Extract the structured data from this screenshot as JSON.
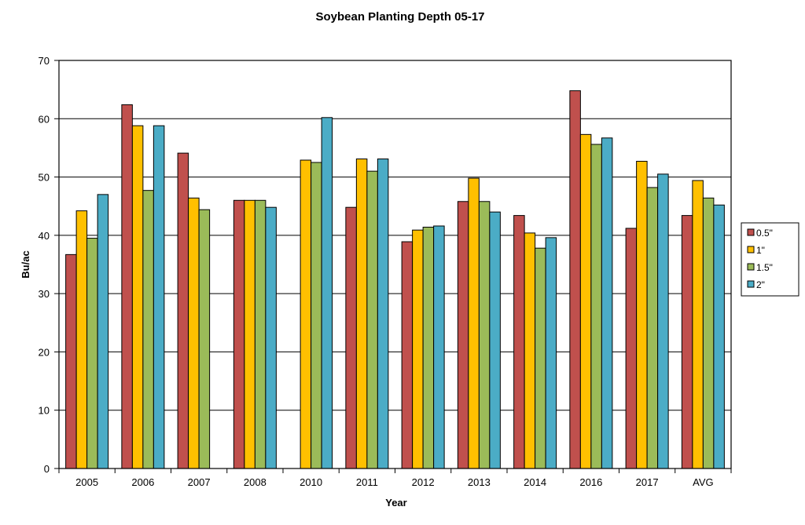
{
  "chart_data": {
    "type": "bar",
    "title": "Soybean Planting Depth 05-17",
    "xlabel": "Year",
    "ylabel": "Bu/ac",
    "ylim": [
      0,
      70
    ],
    "yticks": [
      0,
      10,
      20,
      30,
      40,
      50,
      60,
      70
    ],
    "grid": true,
    "legend_position": "right",
    "categories": [
      "2005",
      "2006",
      "2007",
      "2008",
      "2010",
      "2011",
      "2012",
      "2013",
      "2014",
      "2016",
      "2017",
      "AVG"
    ],
    "series": [
      {
        "name": "0.5\"",
        "color": "#C0504D",
        "values": [
          36.7,
          62.4,
          54.1,
          46.0,
          null,
          44.8,
          38.9,
          45.8,
          43.4,
          64.8,
          41.2,
          43.4
        ]
      },
      {
        "name": "1\"",
        "color": "#FFC000",
        "values": [
          44.2,
          58.8,
          46.4,
          46.0,
          52.9,
          53.1,
          40.9,
          49.8,
          40.4,
          57.3,
          52.7,
          49.4
        ]
      },
      {
        "name": "1.5\"",
        "color": "#9BBB59",
        "values": [
          39.5,
          47.7,
          44.4,
          46.0,
          52.5,
          51.0,
          41.4,
          45.8,
          37.8,
          55.6,
          48.2,
          46.4
        ]
      },
      {
        "name": "2\"",
        "color": "#4BACC6",
        "values": [
          47.0,
          58.8,
          null,
          44.8,
          60.2,
          53.1,
          41.6,
          44.0,
          39.6,
          56.7,
          50.5,
          45.2
        ]
      }
    ]
  }
}
